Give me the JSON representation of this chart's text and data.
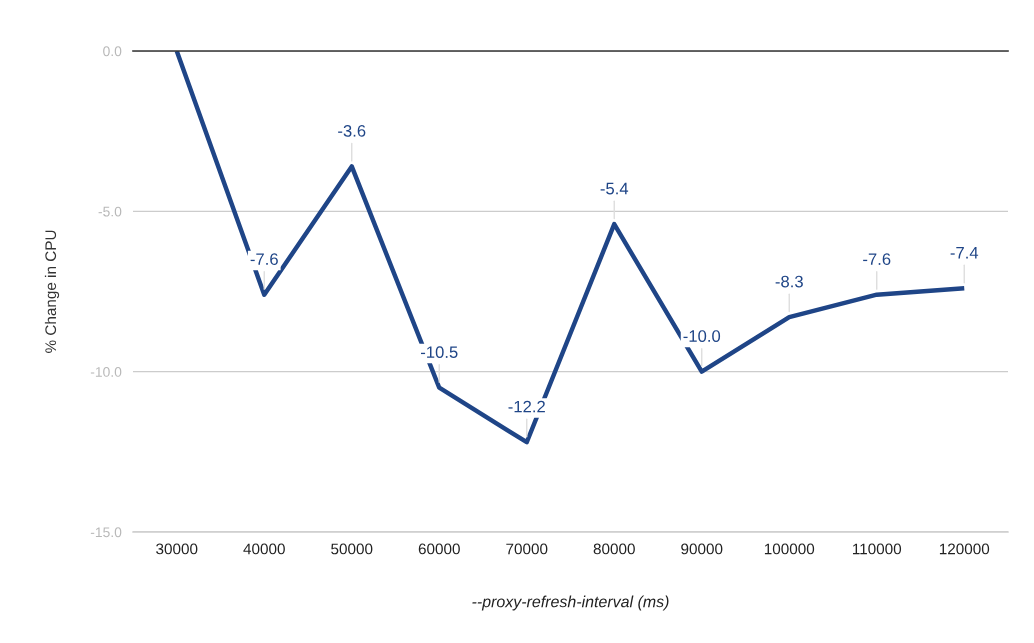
{
  "chart_data": {
    "type": "line",
    "xlabel": "--proxy-refresh-interval (ms)",
    "ylabel": "% Change in CPU",
    "categories": [
      "30000",
      "40000",
      "50000",
      "60000",
      "70000",
      "80000",
      "90000",
      "100000",
      "110000",
      "120000"
    ],
    "values": [
      0.0,
      -7.6,
      -3.6,
      -10.5,
      -12.2,
      -5.4,
      -10.0,
      -8.3,
      -7.6,
      -7.4
    ],
    "value_labels": [
      null,
      "-7.6",
      "-3.6",
      "-10.5",
      "-12.2",
      "-5.4",
      "-10.0",
      "-8.3",
      "-7.6",
      "-7.4"
    ],
    "color": "#1f4587",
    "ylim": [
      -15,
      0
    ],
    "yticks": [
      {
        "value": 0,
        "label": "0.0"
      },
      {
        "value": -5,
        "label": "-5.0"
      },
      {
        "value": -10,
        "label": "-10.0"
      },
      {
        "value": -15,
        "label": "-15.0"
      }
    ],
    "grid": "y",
    "line_style": "solid"
  }
}
